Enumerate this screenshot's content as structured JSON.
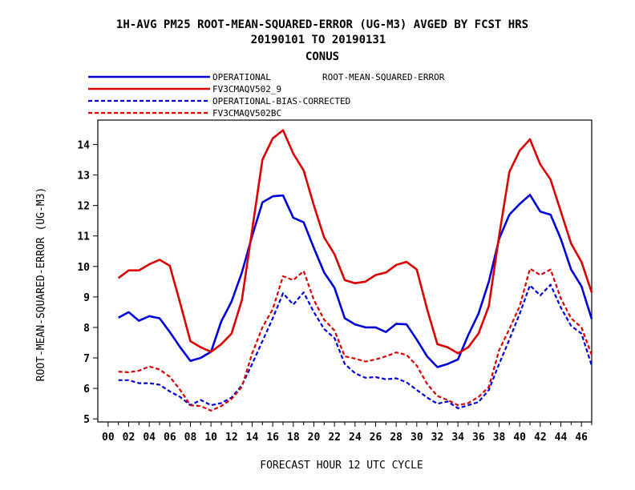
{
  "chart_data": {
    "type": "line",
    "title_lines": [
      "1H-AVG PM25 ROOT-MEAN-SQUARED-ERROR (UG-M3)  AVGED BY FCST HRS",
      "20190101 TO 20190131",
      "CONUS"
    ],
    "legend_title": "ROOT-MEAN-SQUARED-ERROR",
    "xlabel": "FORECAST HOUR  12 UTC CYCLE",
    "ylabel": "ROOT-MEAN-SQUARED-ERROR (UG-M3)",
    "xlim": [
      -1,
      47
    ],
    "ylim": [
      4.9,
      14.8
    ],
    "x_ticks": [
      "00",
      "02",
      "04",
      "06",
      "08",
      "10",
      "12",
      "14",
      "16",
      "18",
      "20",
      "22",
      "24",
      "26",
      "28",
      "30",
      "32",
      "34",
      "36",
      "38",
      "40",
      "42",
      "44",
      "46"
    ],
    "y_ticks": [
      5,
      6,
      7,
      8,
      9,
      10,
      11,
      12,
      13,
      14
    ],
    "legend_position": "top-left",
    "x": [
      1,
      2,
      3,
      4,
      5,
      6,
      7,
      8,
      9,
      10,
      11,
      12,
      13,
      14,
      15,
      16,
      17,
      18,
      19,
      20,
      21,
      22,
      23,
      24,
      25,
      26,
      27,
      28,
      29,
      30,
      31,
      32,
      33,
      34,
      35,
      36,
      37,
      38,
      39,
      40,
      41,
      42,
      43,
      44,
      45,
      46,
      47
    ],
    "series": [
      {
        "name": "OPERATIONAL",
        "color": "#0000dd",
        "dash": false,
        "values": [
          8.32,
          8.5,
          8.22,
          8.37,
          8.3,
          7.85,
          7.35,
          6.9,
          7.0,
          7.2,
          8.2,
          8.85,
          9.8,
          11.0,
          12.1,
          12.3,
          12.33,
          11.6,
          11.45,
          10.6,
          9.8,
          9.3,
          8.3,
          8.1,
          8.0,
          8.0,
          7.85,
          8.12,
          8.1,
          7.6,
          7.05,
          6.7,
          6.8,
          6.95,
          7.75,
          8.45,
          9.5,
          10.9,
          11.7,
          12.05,
          12.35,
          11.8,
          11.7,
          10.9,
          9.9,
          9.35,
          8.28
        ]
      },
      {
        "name": "FV3CMAQV502_9",
        "color": "#dd0000",
        "dash": false,
        "values": [
          9.62,
          9.87,
          9.87,
          10.07,
          10.22,
          10.02,
          8.8,
          7.55,
          7.35,
          7.2,
          7.45,
          7.8,
          8.9,
          11.2,
          13.5,
          14.2,
          14.47,
          13.7,
          13.15,
          12.0,
          10.95,
          10.4,
          9.55,
          9.45,
          9.5,
          9.72,
          9.8,
          10.05,
          10.15,
          9.9,
          8.6,
          7.45,
          7.35,
          7.15,
          7.35,
          7.8,
          8.7,
          11.0,
          13.1,
          13.8,
          14.17,
          13.35,
          12.85,
          11.8,
          10.75,
          10.15,
          9.15
        ]
      },
      {
        "name": "OPERATIONAL-BIAS-CORRECTED",
        "color": "#0000dd",
        "dash": true,
        "values": [
          6.27,
          6.27,
          6.17,
          6.17,
          6.12,
          5.9,
          5.72,
          5.45,
          5.62,
          5.45,
          5.52,
          5.7,
          6.1,
          6.8,
          7.55,
          8.3,
          9.12,
          8.75,
          9.15,
          8.5,
          7.95,
          7.65,
          6.8,
          6.5,
          6.35,
          6.37,
          6.3,
          6.33,
          6.2,
          5.95,
          5.7,
          5.5,
          5.57,
          5.35,
          5.45,
          5.55,
          5.95,
          6.8,
          7.6,
          8.45,
          9.38,
          9.05,
          9.4,
          8.65,
          8.05,
          7.8,
          6.75
        ]
      },
      {
        "name": "FV3CMAQV502BC",
        "color": "#dd0000",
        "dash": true,
        "values": [
          6.55,
          6.53,
          6.58,
          6.72,
          6.62,
          6.38,
          5.95,
          5.45,
          5.42,
          5.27,
          5.42,
          5.65,
          6.05,
          7.15,
          8.0,
          8.6,
          9.68,
          9.55,
          9.85,
          8.9,
          8.25,
          7.9,
          7.05,
          6.98,
          6.88,
          6.95,
          7.05,
          7.18,
          7.1,
          6.75,
          6.15,
          5.75,
          5.62,
          5.45,
          5.52,
          5.72,
          6.05,
          7.25,
          7.95,
          8.7,
          9.93,
          9.72,
          9.9,
          8.95,
          8.3,
          8.0,
          7.1
        ]
      }
    ]
  }
}
